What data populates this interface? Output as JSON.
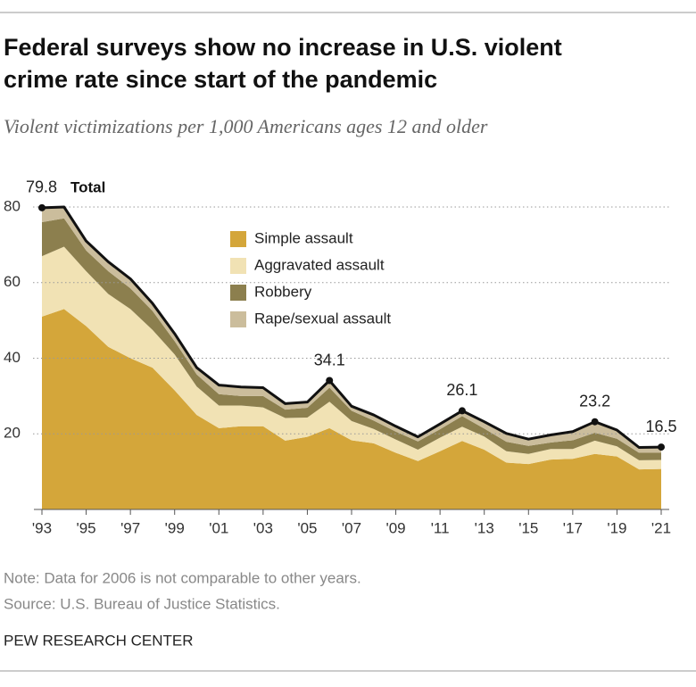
{
  "chart_data": {
    "type": "stacked_area",
    "title": "Federal surveys show no increase in U.S. violent crime rate since start of the pandemic",
    "subtitle": "Violent victimizations per 1,000 Americans ages 12 and older",
    "x": [
      1993,
      1994,
      1995,
      1996,
      1997,
      1998,
      1999,
      2000,
      2001,
      2002,
      2003,
      2004,
      2005,
      2006,
      2007,
      2008,
      2009,
      2010,
      2011,
      2012,
      2013,
      2014,
      2015,
      2016,
      2017,
      2018,
      2019,
      2020,
      2021
    ],
    "series": [
      {
        "name": "Simple assault",
        "color": "#d4a63a",
        "values": [
          51,
          53,
          48.5,
          43,
          40,
          37.5,
          31.5,
          25,
          21.5,
          22,
          22,
          18.2,
          19.2,
          21.5,
          18.3,
          17.5,
          15,
          12.8,
          15.4,
          18.1,
          15.8,
          12.4,
          12,
          13.2,
          13.4,
          14.7,
          14,
          10.6,
          10.7
        ]
      },
      {
        "name": "Aggravated assault",
        "color": "#f1e2b4",
        "values": [
          16,
          16.5,
          14.5,
          14,
          13,
          10,
          9.5,
          7.5,
          6,
          5.5,
          5,
          6,
          5.1,
          7,
          5.1,
          3.8,
          3.5,
          3,
          3.6,
          3.8,
          3.5,
          3,
          2.7,
          2.8,
          2.6,
          3.5,
          2.7,
          2.4,
          2.4
        ]
      },
      {
        "name": "Robbery",
        "color": "#8c7f4e",
        "values": [
          9,
          7.5,
          5.5,
          6,
          5.5,
          5,
          3.5,
          3.2,
          3,
          2.5,
          3,
          2.2,
          2.6,
          3.7,
          2.7,
          2.2,
          2.1,
          2.2,
          2.2,
          2.8,
          2.1,
          2.5,
          2.1,
          1.7,
          2.3,
          2.1,
          2,
          2,
          1.9
        ]
      },
      {
        "name": "Rape/sexual assault",
        "color": "#cbbd9c",
        "values": [
          3.8,
          3,
          2.5,
          2.5,
          2.5,
          2,
          2,
          1.8,
          2.4,
          2.4,
          2.2,
          1.6,
          1.5,
          1.9,
          1.2,
          1.5,
          1.4,
          1.2,
          1.4,
          1.4,
          1.8,
          2.2,
          1.8,
          2,
          2.3,
          2.9,
          2.3,
          1.4,
          1.5
        ]
      }
    ],
    "total": {
      "name": "Total",
      "color": "#111111",
      "values": [
        79.8,
        80,
        71,
        65.5,
        61,
        54.5,
        46.5,
        37.5,
        32.9,
        32.4,
        32.2,
        28,
        28.4,
        34.1,
        27.3,
        25,
        22,
        19.2,
        22.6,
        26.1,
        23.2,
        20.1,
        18.6,
        19.7,
        20.6,
        23.2,
        21,
        16.4,
        16.5
      ],
      "value_labels": [
        "79.8",
        null,
        null,
        null,
        null,
        null,
        null,
        null,
        null,
        null,
        null,
        null,
        null,
        "34.1",
        null,
        null,
        null,
        null,
        null,
        "26.1",
        null,
        null,
        null,
        null,
        null,
        "23.2",
        null,
        null,
        "16.5"
      ]
    },
    "xlim": [
      1993,
      2021
    ],
    "xticks": [
      {
        "value": 1993,
        "label": "'93"
      },
      {
        "value": 1995,
        "label": "'95"
      },
      {
        "value": 1997,
        "label": "'97"
      },
      {
        "value": 1999,
        "label": "'99"
      },
      {
        "value": 2001,
        "label": "'01"
      },
      {
        "value": 2003,
        "label": "'03"
      },
      {
        "value": 2005,
        "label": "'05"
      },
      {
        "value": 2007,
        "label": "'07"
      },
      {
        "value": 2009,
        "label": "'09"
      },
      {
        "value": 2011,
        "label": "'11"
      },
      {
        "value": 2013,
        "label": "'13"
      },
      {
        "value": 2015,
        "label": "'15"
      },
      {
        "value": 2017,
        "label": "'17"
      },
      {
        "value": 2019,
        "label": "'19"
      },
      {
        "value": 2021,
        "label": "'21"
      }
    ],
    "ylim": [
      0,
      80
    ],
    "yticks": [
      20,
      40,
      60,
      80
    ],
    "grid": true,
    "note": "Note: Data for 2006 is not comparable to other years.",
    "source": "Source: U.S. Bureau of Justice Statistics.",
    "credit": "PEW RESEARCH CENTER"
  }
}
